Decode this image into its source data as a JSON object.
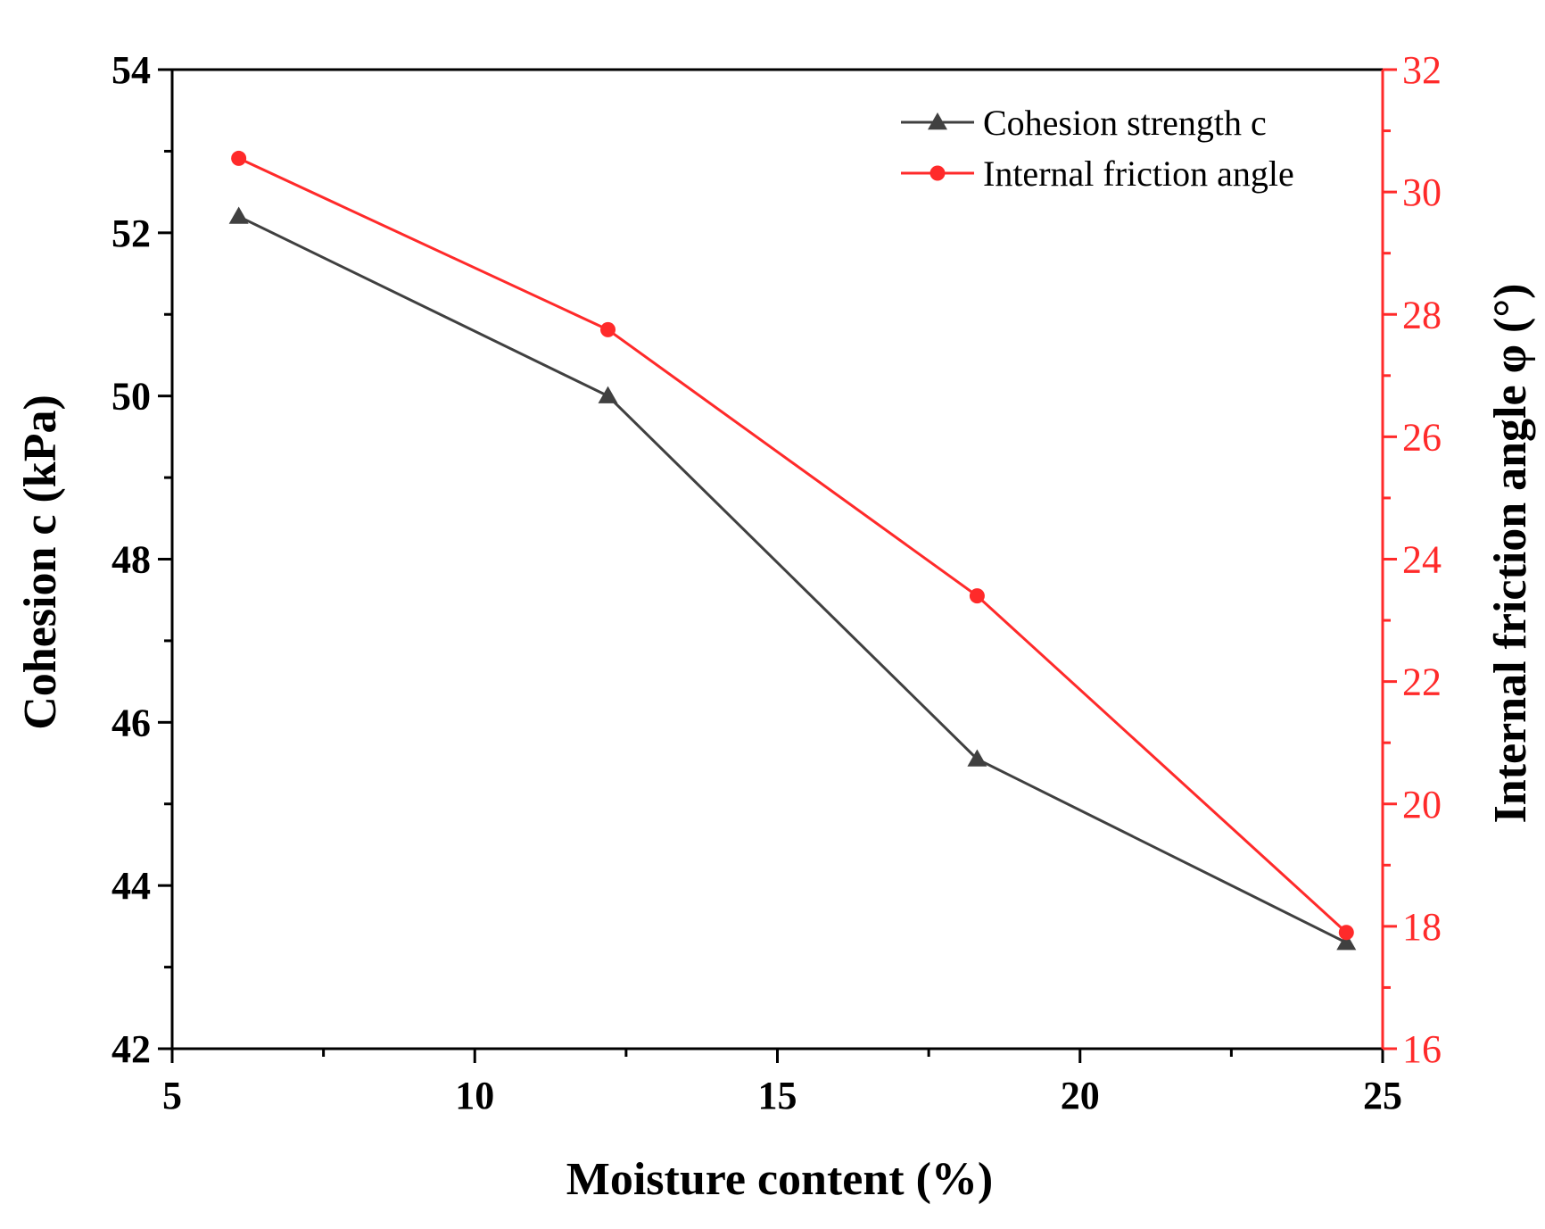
{
  "chart_data": {
    "type": "line",
    "title": "",
    "xlabel": "Moisture content (%)",
    "ylabel": "Cohesion  c (kPa)",
    "y2label": "Internal friction angle φ (°)",
    "xlim": [
      5,
      25
    ],
    "ylim": [
      42,
      54
    ],
    "y2lim": [
      16,
      32
    ],
    "x_major_ticks": [
      5,
      10,
      15,
      20,
      25
    ],
    "x_minor_ticks": [
      7.5,
      12.5,
      17.5,
      22.5
    ],
    "y_major_ticks": [
      42,
      44,
      46,
      48,
      50,
      52,
      54
    ],
    "y_minor_ticks": [
      43,
      45,
      47,
      49,
      51,
      53
    ],
    "y2_major_ticks": [
      16,
      18,
      20,
      22,
      24,
      26,
      28,
      30,
      32
    ],
    "y2_minor_ticks": [
      17,
      19,
      21,
      23,
      25,
      27,
      29,
      31
    ],
    "legend_position": "top-right",
    "series": [
      {
        "name": "Cohesion strength c",
        "axis": "left",
        "marker": "triangle",
        "color": "#404040",
        "x": [
          6.1,
          12.2,
          18.3,
          24.4
        ],
        "values": [
          52.2,
          50.0,
          45.55,
          43.3
        ]
      },
      {
        "name": "Internal friction angle",
        "axis": "right",
        "marker": "circle",
        "color": "#ff2a2a",
        "x": [
          6.1,
          12.2,
          18.3,
          24.4
        ],
        "values": [
          30.55,
          27.75,
          23.4,
          17.9
        ]
      }
    ],
    "colors": {
      "axis_left": "#000000",
      "axis_right": "#ff2a2a"
    }
  }
}
